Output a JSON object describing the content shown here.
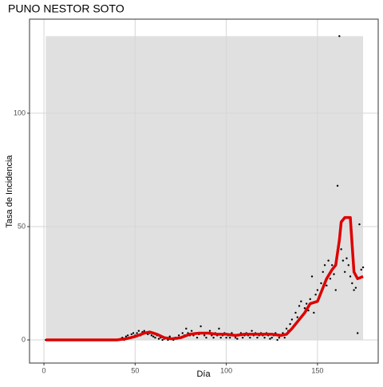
{
  "chart_data": {
    "type": "scatter",
    "title": "PUNO NESTOR SOTO",
    "x_label": "Día",
    "y_label": "Tasa de Incidencia",
    "xlim": [
      -7.9,
      183.3
    ],
    "ylim": [
      -10.2,
      141.5
    ],
    "xticks": [
      0,
      50,
      100,
      150
    ],
    "yticks": [
      0,
      50,
      100
    ],
    "grid": true,
    "ribbon": {
      "x": [
        1,
        175
      ],
      "y": [
        0,
        134
      ],
      "color": "#e0e0e0"
    },
    "points": {
      "color": "#000000",
      "x": [
        1,
        2,
        3,
        4,
        5,
        6,
        7,
        8,
        9,
        10,
        11,
        12,
        13,
        14,
        15,
        16,
        17,
        18,
        19,
        20,
        21,
        22,
        23,
        24,
        25,
        26,
        27,
        28,
        29,
        30,
        31,
        32,
        33,
        34,
        35,
        36,
        37,
        38,
        39,
        40,
        41,
        42,
        43,
        44,
        45,
        46,
        47,
        48,
        49,
        50,
        51,
        52,
        53,
        54,
        55,
        56,
        57,
        58,
        59,
        60,
        61,
        62,
        63,
        64,
        65,
        66,
        67,
        68,
        69,
        70,
        71,
        72,
        73,
        74,
        75,
        76,
        77,
        78,
        79,
        80,
        81,
        82,
        83,
        84,
        85,
        86,
        87,
        88,
        89,
        90,
        91,
        92,
        93,
        94,
        95,
        96,
        97,
        98,
        99,
        100,
        101,
        102,
        103,
        104,
        105,
        106,
        107,
        108,
        109,
        110,
        111,
        112,
        113,
        114,
        115,
        116,
        117,
        118,
        119,
        120,
        121,
        122,
        123,
        124,
        125,
        126,
        127,
        128,
        129,
        130,
        131,
        132,
        133,
        134,
        135,
        136,
        137,
        138,
        139,
        140,
        141,
        142,
        143,
        144,
        145,
        146,
        147,
        148,
        149,
        150,
        151,
        152,
        153,
        154,
        155,
        156,
        157,
        158,
        159,
        160,
        161,
        162,
        163,
        164,
        165,
        166,
        167,
        168,
        169,
        170,
        171,
        172,
        173,
        174,
        175
      ],
      "y": [
        0,
        0,
        0,
        0,
        0,
        0,
        0,
        0,
        0,
        0,
        0,
        0,
        0,
        0,
        0,
        0,
        0,
        0,
        0,
        0,
        0,
        0,
        0,
        0,
        0,
        0,
        0,
        0,
        0,
        0,
        0,
        0,
        0,
        0,
        0,
        0,
        0,
        0,
        0,
        0,
        0,
        0.5,
        1,
        0,
        1.5,
        2,
        1,
        2.5,
        3,
        2,
        3,
        4,
        2,
        3.5,
        4,
        3,
        2.5,
        3,
        2,
        1.5,
        1,
        2,
        0.5,
        1,
        0,
        0.5,
        1,
        0,
        1.5,
        0.5,
        0,
        1,
        0.5,
        2,
        1,
        3,
        2,
        5,
        3,
        2,
        4,
        2,
        3,
        1,
        2.5,
        6,
        3,
        2,
        1,
        3,
        4,
        2,
        1,
        3,
        2,
        5,
        1,
        2,
        3,
        1,
        2,
        1,
        3,
        2,
        1,
        0.5,
        2,
        3,
        1,
        2,
        3,
        2,
        1,
        4,
        2,
        3,
        1,
        2,
        3,
        2,
        1,
        3,
        2,
        0.5,
        1,
        2,
        3,
        0,
        1,
        2,
        3,
        1,
        5,
        4,
        7,
        9,
        6,
        12,
        10,
        15,
        17,
        11,
        14,
        16,
        13,
        18,
        28,
        12,
        20,
        22,
        19,
        25,
        30,
        33,
        24,
        35,
        27,
        33,
        29,
        22,
        68,
        134,
        40,
        35,
        30,
        36,
        33,
        28,
        25,
        22,
        23,
        3,
        51,
        31,
        32
      ]
    },
    "smooth": {
      "color": "#dd0000",
      "x": [
        1,
        40,
        45,
        50,
        55,
        58,
        62,
        66,
        70,
        75,
        80,
        85,
        90,
        95,
        100,
        105,
        110,
        115,
        120,
        125,
        130,
        133,
        136,
        140,
        143,
        146,
        150,
        152,
        155,
        158,
        160,
        162,
        163,
        165,
        168,
        170,
        172,
        175
      ],
      "y": [
        0,
        0,
        0.5,
        1.5,
        3,
        3.5,
        2.5,
        1,
        0.5,
        1,
        2.5,
        3,
        3,
        2.5,
        2.5,
        2,
        2.5,
        2.5,
        2.5,
        2.5,
        2,
        2.5,
        5,
        9,
        12,
        16,
        17,
        21,
        27,
        31,
        33,
        44,
        52,
        54,
        54,
        30,
        27,
        28
      ]
    }
  }
}
